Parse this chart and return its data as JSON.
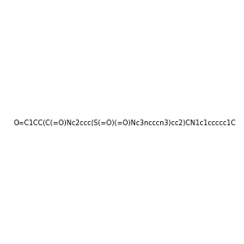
{
  "smiles": "O=C1CC(C(=O)Nc2ccc(S(=O)(=O)Nc3ncccn3)cc2)CN1c1ccccc1C",
  "image_size": 300,
  "background_color": "#f0f0f0",
  "title": ""
}
